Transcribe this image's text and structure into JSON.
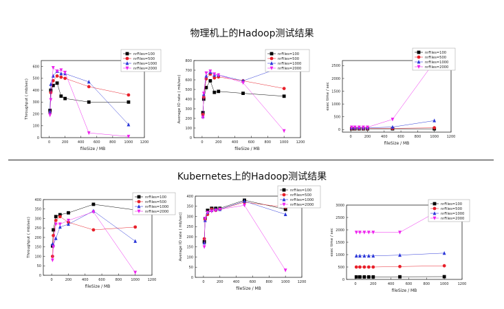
{
  "page": {
    "title_top": "物理机上的Hadoop测试结果",
    "title_bottom": "Kubernetes上的Hadoop测试结果"
  },
  "colors": {
    "nrFiles=100": "#000000",
    "nrFiles=500": "#e8202a",
    "nrFiles=1000": "#2a36d8",
    "nrFiles=2000": "#ee22ee"
  },
  "chart_data": [
    {
      "id": "phys-throughput",
      "type": "line",
      "xlabel": "fileSize / MB",
      "ylabel": "Throughput ( mb/sec)",
      "xlim": [
        -100,
        1200
      ],
      "ylim": [
        0,
        650
      ],
      "xticks": [
        0,
        200,
        400,
        600,
        800,
        1000,
        1200
      ],
      "yticks": [
        0,
        100,
        200,
        300,
        400,
        500,
        600
      ],
      "legend": "top-right",
      "series": [
        {
          "name": "nrFiles=100",
          "x": [
            10,
            20,
            50,
            100,
            150,
            200,
            500,
            1000
          ],
          "y": [
            230,
            400,
            440,
            460,
            350,
            330,
            300,
            300
          ]
        },
        {
          "name": "nrFiles=500",
          "x": [
            10,
            20,
            50,
            100,
            150,
            200,
            500,
            1000
          ],
          "y": [
            210,
            380,
            480,
            520,
            510,
            500,
            430,
            360
          ]
        },
        {
          "name": "nrFiles=1000",
          "x": [
            10,
            20,
            50,
            100,
            150,
            200,
            500,
            1000
          ],
          "y": [
            220,
            450,
            520,
            560,
            540,
            540,
            470,
            110
          ]
        },
        {
          "name": "nrFiles=2000",
          "x": [
            10,
            20,
            50,
            100,
            150,
            200,
            500,
            1000
          ],
          "y": [
            190,
            320,
            590,
            560,
            570,
            550,
            40,
            10
          ]
        }
      ]
    },
    {
      "id": "phys-io",
      "type": "line",
      "xlabel": "fileSize / MB",
      "ylabel": "Average IO rate ( mb/sec)",
      "xlim": [
        -100,
        1200
      ],
      "ylim": [
        0,
        800
      ],
      "xticks": [
        0,
        200,
        400,
        600,
        800,
        1000,
        1200
      ],
      "yticks": [
        0,
        100,
        200,
        300,
        400,
        500,
        600,
        700,
        800
      ],
      "legend": "top-right",
      "series": [
        {
          "name": "nrFiles=100",
          "x": [
            10,
            20,
            50,
            100,
            150,
            200,
            500,
            1000
          ],
          "y": [
            260,
            400,
            520,
            590,
            470,
            480,
            460,
            430
          ]
        },
        {
          "name": "nrFiles=500",
          "x": [
            10,
            20,
            50,
            100,
            150,
            200,
            500,
            1000
          ],
          "y": [
            240,
            420,
            610,
            660,
            620,
            630,
            590,
            510
          ]
        },
        {
          "name": "nrFiles=1000",
          "x": [
            10,
            20,
            50,
            100,
            150,
            200,
            500,
            1000
          ],
          "y": [
            220,
            450,
            640,
            680,
            650,
            650,
            590,
            740
          ]
        },
        {
          "name": "nrFiles=2000",
          "x": [
            10,
            20,
            50,
            100,
            150,
            200,
            500,
            1000
          ],
          "y": [
            210,
            460,
            670,
            690,
            660,
            650,
            570,
            70
          ]
        }
      ]
    },
    {
      "id": "phys-exec",
      "type": "line",
      "xlabel": "fileSize / MB",
      "ylabel": "exec time / sec",
      "xlim": [
        -100,
        1200
      ],
      "ylim": [
        -100,
        2700
      ],
      "xticks": [
        0,
        200,
        400,
        600,
        800,
        1000,
        1200
      ],
      "yticks": [
        0,
        500,
        1000,
        1500,
        2000,
        2500
      ],
      "legend": "top-right",
      "series": [
        {
          "name": "nrFiles=100",
          "x": [
            10,
            50,
            100,
            150,
            200,
            500,
            1000
          ],
          "y": [
            30,
            30,
            30,
            30,
            30,
            30,
            30
          ]
        },
        {
          "name": "nrFiles=500",
          "x": [
            10,
            50,
            100,
            150,
            200,
            500,
            1000
          ],
          "y": [
            40,
            40,
            40,
            40,
            40,
            50,
            70
          ]
        },
        {
          "name": "nrFiles=1000",
          "x": [
            10,
            50,
            100,
            150,
            200,
            500,
            1000
          ],
          "y": [
            70,
            70,
            70,
            70,
            70,
            100,
            350
          ]
        },
        {
          "name": "nrFiles=2000",
          "x": [
            10,
            50,
            100,
            150,
            200,
            500,
            1000
          ],
          "y": [
            90,
            90,
            90,
            90,
            90,
            400,
            2650
          ]
        }
      ]
    },
    {
      "id": "k8s-throughput",
      "type": "line",
      "xlabel": "fileSize / MB",
      "ylabel": "Throughput ( mb/sec)",
      "xlim": [
        -100,
        1200
      ],
      "ylim": [
        0,
        400
      ],
      "xticks": [
        0,
        200,
        400,
        600,
        800,
        1000,
        1200
      ],
      "yticks": [
        0,
        50,
        100,
        150,
        200,
        250,
        300,
        350,
        400
      ],
      "legend": "top-right",
      "series": [
        {
          "name": "nrFiles=100",
          "x": [
            10,
            20,
            50,
            100,
            200,
            500,
            1000
          ],
          "y": [
            155,
            240,
            310,
            320,
            330,
            375,
            345
          ]
        },
        {
          "name": "nrFiles=500",
          "x": [
            10,
            20,
            50,
            100,
            200,
            500,
            1000
          ],
          "y": [
            100,
            210,
            290,
            310,
            280,
            240,
            255
          ]
        },
        {
          "name": "nrFiles=1000",
          "x": [
            10,
            20,
            50,
            100,
            200,
            500,
            1000
          ],
          "y": [
            165,
            160,
            195,
            255,
            270,
            340,
            180
          ]
        },
        {
          "name": "nrFiles=2000",
          "x": [
            10,
            20,
            50,
            100,
            200,
            500,
            1000
          ],
          "y": [
            80,
            150,
            270,
            270,
            290,
            335,
            15
          ]
        }
      ]
    },
    {
      "id": "k8s-io",
      "type": "line",
      "xlabel": "fileSize / MB",
      "ylabel": "Average IO rate ( mb/sec)",
      "xlim": [
        -100,
        1200
      ],
      "ylim": [
        0,
        400
      ],
      "xticks": [
        0,
        200,
        400,
        600,
        800,
        1000,
        1200
      ],
      "yticks": [
        0,
        50,
        100,
        150,
        200,
        250,
        300,
        350,
        400
      ],
      "legend": "top-right",
      "series": [
        {
          "name": "nrFiles=100",
          "x": [
            10,
            20,
            50,
            100,
            150,
            200,
            500,
            1000
          ],
          "y": [
            175,
            290,
            330,
            340,
            340,
            340,
            380,
            335
          ]
        },
        {
          "name": "nrFiles=500",
          "x": [
            10,
            20,
            50,
            100,
            150,
            200,
            500,
            1000
          ],
          "y": [
            190,
            285,
            310,
            335,
            330,
            335,
            370,
            345
          ]
        },
        {
          "name": "nrFiles=1000",
          "x": [
            10,
            20,
            50,
            100,
            150,
            200,
            500,
            1000
          ],
          "y": [
            170,
            280,
            320,
            330,
            335,
            335,
            375,
            310
          ]
        },
        {
          "name": "nrFiles=2000",
          "x": [
            10,
            20,
            50,
            100,
            150,
            200,
            500,
            1000
          ],
          "y": [
            150,
            290,
            320,
            325,
            330,
            335,
            355,
            35
          ]
        }
      ]
    },
    {
      "id": "k8s-exec",
      "type": "line",
      "xlabel": "fileSize / MB",
      "ylabel": "exec time / sec",
      "xlim": [
        -100,
        1200
      ],
      "ylim": [
        0,
        3000
      ],
      "xticks": [
        0,
        200,
        400,
        600,
        800,
        1000,
        1200
      ],
      "yticks": [
        0,
        500,
        1000,
        1500,
        2000,
        2500,
        3000
      ],
      "legend": "top-right",
      "series": [
        {
          "name": "nrFiles=100",
          "x": [
            10,
            50,
            100,
            150,
            200,
            500,
            1000
          ],
          "y": [
            100,
            100,
            100,
            100,
            100,
            105,
            110
          ]
        },
        {
          "name": "nrFiles=500",
          "x": [
            10,
            50,
            100,
            150,
            200,
            500,
            1000
          ],
          "y": [
            500,
            500,
            500,
            500,
            500,
            520,
            550
          ]
        },
        {
          "name": "nrFiles=1000",
          "x": [
            10,
            50,
            100,
            150,
            200,
            500,
            1000
          ],
          "y": [
            950,
            950,
            950,
            950,
            950,
            980,
            1060
          ]
        },
        {
          "name": "nrFiles=2000",
          "x": [
            10,
            50,
            100,
            150,
            200,
            500,
            1000
          ],
          "y": [
            1900,
            1900,
            1900,
            1900,
            1900,
            1900,
            2900
          ]
        }
      ]
    }
  ]
}
